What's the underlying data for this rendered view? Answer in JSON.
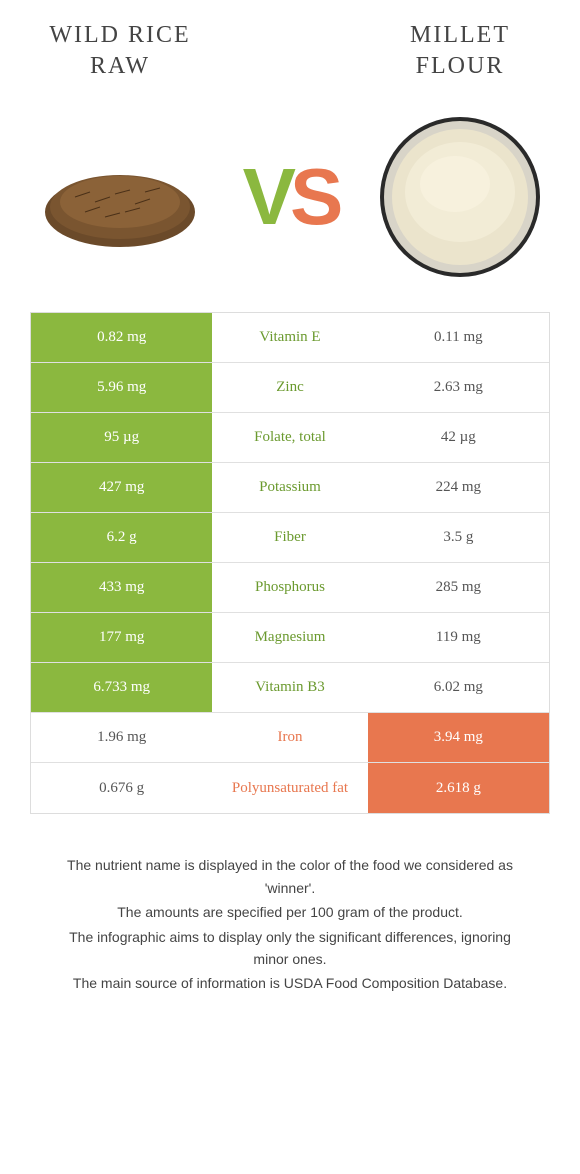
{
  "header": {
    "left_line1": "WILD RICE",
    "left_line2": "RAW",
    "right_line1": "MILLET",
    "right_line2": "FLOUR"
  },
  "vs": {
    "v": "V",
    "s": "S"
  },
  "colors": {
    "green": "#8bb83f",
    "orange": "#e8774f",
    "green_text": "#6b9a2f",
    "orange_text": "#e8774f",
    "border": "#e0e0e0",
    "bg": "#ffffff"
  },
  "table": {
    "rows": [
      {
        "left": "0.82 mg",
        "mid": "Vitamin E",
        "right": "0.11 mg",
        "winner": "left"
      },
      {
        "left": "5.96 mg",
        "mid": "Zinc",
        "right": "2.63 mg",
        "winner": "left"
      },
      {
        "left": "95 µg",
        "mid": "Folate, total",
        "right": "42 µg",
        "winner": "left"
      },
      {
        "left": "427 mg",
        "mid": "Potassium",
        "right": "224 mg",
        "winner": "left"
      },
      {
        "left": "6.2 g",
        "mid": "Fiber",
        "right": "3.5 g",
        "winner": "left"
      },
      {
        "left": "433 mg",
        "mid": "Phosphorus",
        "right": "285 mg",
        "winner": "left"
      },
      {
        "left": "177 mg",
        "mid": "Magnesium",
        "right": "119 mg",
        "winner": "left"
      },
      {
        "left": "6.733 mg",
        "mid": "Vitamin B3",
        "right": "6.02 mg",
        "winner": "left"
      },
      {
        "left": "1.96 mg",
        "mid": "Iron",
        "right": "3.94 mg",
        "winner": "right"
      },
      {
        "left": "0.676 g",
        "mid": "Polyunsaturated fat",
        "right": "2.618 g",
        "winner": "right"
      }
    ]
  },
  "footer": {
    "line1": "The nutrient name is displayed in the color of the food we considered as 'winner'.",
    "line2": "The amounts are specified per 100 gram of the product.",
    "line3": "The infographic aims to display only the significant differences, ignoring minor ones.",
    "line4": "The main source of information is USDA Food Composition Database."
  }
}
